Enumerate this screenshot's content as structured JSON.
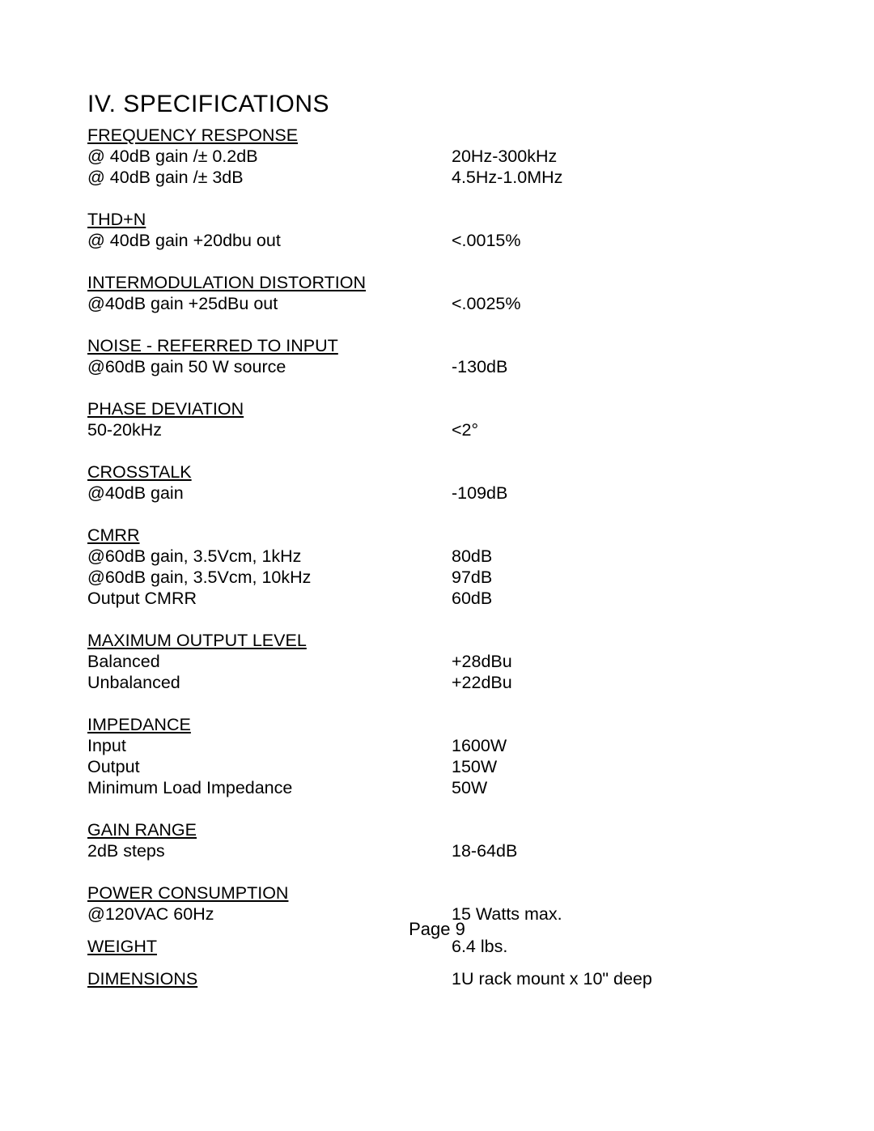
{
  "title": "IV. SPECIFICATIONS",
  "footer": "Page 9",
  "sections": {
    "freq": {
      "header": "FREQUENCY RESPONSE",
      "r0": {
        "l": "@ 40dB gain /± 0.2dB",
        "r": "20Hz-300kHz"
      },
      "r1": {
        "l": "@ 40dB gain /± 3dB",
        "r": "4.5Hz-1.0MHz"
      }
    },
    "thd": {
      "header": "THD+N",
      "r0": {
        "l": "@ 40dB gain  +20dbu out",
        "r": "<.0015%"
      }
    },
    "imd": {
      "header": "INTERMODULATION DISTORTION",
      "r0": {
        "l": "@40dB gain  +25dBu out",
        "r": "<.0025%"
      }
    },
    "noise": {
      "header": "NOISE - REFERRED TO INPUT",
      "r0": {
        "l": "@60dB gain  50 W source",
        "r": "-130dB"
      }
    },
    "phase": {
      "header": "PHASE DEVIATION",
      "r0": {
        "l": "50-20kHz",
        "r": "<2°"
      }
    },
    "xtalk": {
      "header": "CROSSTALK",
      "r0": {
        "l": "@40dB gain",
        "r": "-109dB"
      }
    },
    "cmrr": {
      "header": "CMRR",
      "r0": {
        "l": "@60dB gain, 3.5Vcm, 1kHz",
        "r": "80dB"
      },
      "r1": {
        "l": "@60dB gain, 3.5Vcm,  10kHz",
        "r": "97dB"
      },
      "r2": {
        "l": "Output CMRR",
        "r": "60dB"
      }
    },
    "maxout": {
      "header": "MAXIMUM OUTPUT LEVEL",
      "r0": {
        "l": "Balanced",
        "r": "+28dBu"
      },
      "r1": {
        "l": "Unbalanced",
        "r": "+22dBu"
      }
    },
    "imp": {
      "header": "IMPEDANCE",
      "r0": {
        "l": "Input",
        "r": "1600W"
      },
      "r1": {
        "l": "Output",
        "r": "150W"
      },
      "r2": {
        "l": "Minimum Load Impedance",
        "r": "50W"
      }
    },
    "gain": {
      "header": "GAIN RANGE",
      "r0": {
        "l": "2dB steps",
        "r": "18-64dB"
      }
    },
    "power": {
      "header": "POWER CONSUMPTION",
      "r0": {
        "l": "@120VAC 60Hz",
        "r": "15 Watts max."
      }
    },
    "weight": {
      "header": "WEIGHT",
      "value": "6.4 lbs."
    },
    "dim": {
      "header": "DIMENSIONS",
      "value": "1U rack mount x 10\" deep"
    }
  }
}
